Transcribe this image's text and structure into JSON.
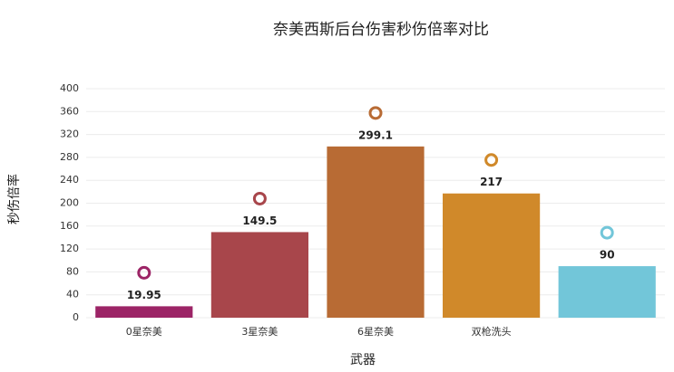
{
  "chart_data": {
    "type": "bar",
    "title": "奈美西斯后台伤害秒伤倍率对比",
    "x_label": "武器",
    "y_label": "秒伤倍率",
    "categories": [
      "0星奈美",
      "3星奈美",
      "6星奈美",
      "双枪洗头",
      null
    ],
    "values": [
      19.95,
      149.5,
      299.1,
      217,
      90
    ],
    "colors": [
      "#9c2466",
      "#a8464b",
      "#b86b34",
      "#d0892a",
      "#72c6d9"
    ],
    "ylim": [
      0,
      400
    ],
    "yticks": [
      0,
      40,
      80,
      120,
      160,
      200,
      240,
      280,
      320,
      360,
      400
    ],
    "grid": true
  }
}
